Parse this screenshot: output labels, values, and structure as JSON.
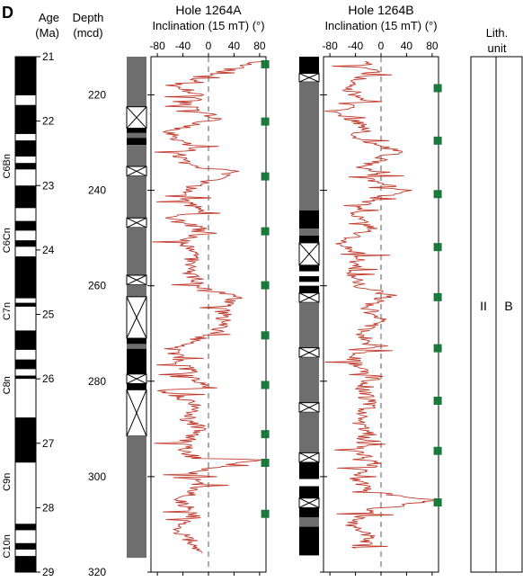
{
  "panel_label": "D",
  "age_header": [
    "Age",
    "(Ma)"
  ],
  "depth_header": [
    "Depth",
    "(mcd)"
  ],
  "hole_a_title": [
    "Hole 1264A",
    "Inclination (15 mT) (°)"
  ],
  "hole_b_title": [
    "Hole 1264B",
    "Inclination (15 mT) (°)"
  ],
  "lith_header": [
    "Lith.",
    "unit"
  ],
  "lith_units": [
    "II",
    "B"
  ],
  "colors": {
    "curve": "#c0392b",
    "marker": "#1a7a3c",
    "gray": "#6e6e6e",
    "black": "#000000",
    "white": "#ffffff"
  },
  "chart_data": [
    {
      "type": "scatter",
      "name": "age scale",
      "y_range": [
        21,
        29
      ],
      "age_ticks": [
        "21",
        "22",
        "23",
        "24",
        "25",
        "26",
        "27",
        "28",
        "29"
      ],
      "chron_labels": [
        {
          "label": "C6Bn",
          "age": 22.7
        },
        {
          "label": "C6Cn",
          "age": 23.85
        },
        {
          "label": "C7n",
          "age": 24.95
        },
        {
          "label": "C8n",
          "age": 26.1
        },
        {
          "label": "C9n",
          "age": 27.6
        },
        {
          "label": "C10n",
          "age": 28.6
        }
      ],
      "polarity_bands": [
        {
          "from": 21.0,
          "to": 21.6,
          "polarity": "normal"
        },
        {
          "from": 21.6,
          "to": 21.75,
          "polarity": "reversed"
        },
        {
          "from": 21.75,
          "to": 22.2,
          "polarity": "normal"
        },
        {
          "from": 22.2,
          "to": 22.3,
          "polarity": "reversed"
        },
        {
          "from": 22.3,
          "to": 22.55,
          "polarity": "normal"
        },
        {
          "from": 22.55,
          "to": 22.65,
          "polarity": "reversed"
        },
        {
          "from": 22.65,
          "to": 22.75,
          "polarity": "normal"
        },
        {
          "from": 22.75,
          "to": 23.0,
          "polarity": "reversed"
        },
        {
          "from": 23.0,
          "to": 23.35,
          "polarity": "normal"
        },
        {
          "from": 23.35,
          "to": 23.55,
          "polarity": "reversed"
        },
        {
          "from": 23.55,
          "to": 23.7,
          "polarity": "normal"
        },
        {
          "from": 23.7,
          "to": 23.85,
          "polarity": "reversed"
        },
        {
          "from": 23.85,
          "to": 23.95,
          "polarity": "normal"
        },
        {
          "from": 23.95,
          "to": 24.1,
          "polarity": "reversed"
        },
        {
          "from": 24.1,
          "to": 24.75,
          "polarity": "normal"
        },
        {
          "from": 24.75,
          "to": 24.82,
          "polarity": "reversed"
        },
        {
          "from": 24.82,
          "to": 24.88,
          "polarity": "normal"
        },
        {
          "from": 24.88,
          "to": 25.25,
          "polarity": "reversed"
        },
        {
          "from": 25.25,
          "to": 25.55,
          "polarity": "normal"
        },
        {
          "from": 25.55,
          "to": 25.7,
          "polarity": "reversed"
        },
        {
          "from": 25.7,
          "to": 25.85,
          "polarity": "normal"
        },
        {
          "from": 25.85,
          "to": 25.95,
          "polarity": "reversed"
        },
        {
          "from": 25.95,
          "to": 26.0,
          "polarity": "normal"
        },
        {
          "from": 26.0,
          "to": 26.6,
          "polarity": "reversed"
        },
        {
          "from": 26.6,
          "to": 27.3,
          "polarity": "normal"
        },
        {
          "from": 27.3,
          "to": 28.25,
          "polarity": "reversed"
        },
        {
          "from": 28.25,
          "to": 28.35,
          "polarity": "normal"
        },
        {
          "from": 28.35,
          "to": 28.55,
          "polarity": "reversed"
        },
        {
          "from": 28.55,
          "to": 28.65,
          "polarity": "normal"
        },
        {
          "from": 28.65,
          "to": 28.75,
          "polarity": "reversed"
        },
        {
          "from": 28.75,
          "to": 29.0,
          "polarity": "normal"
        }
      ]
    },
    {
      "type": "line",
      "name": "Hole 1264A",
      "xlim": [
        -90,
        90
      ],
      "ylim": [
        212,
        320
      ],
      "x_ticks": [
        "-80",
        "-40",
        "0",
        "40",
        "80"
      ],
      "y_ticks": [
        "220",
        "240",
        "260",
        "280",
        "300",
        "320"
      ],
      "core_breaks": [
        213.5,
        224.5,
        236.2,
        247.8,
        258.9,
        270.2,
        280.1,
        291.5,
        296.7,
        308.0
      ],
      "column": [
        {
          "from": 212,
          "to": 222.5,
          "kind": "gray"
        },
        {
          "from": 222.5,
          "to": 227.0,
          "kind": "void"
        },
        {
          "from": 227.0,
          "to": 228.0,
          "kind": "black"
        },
        {
          "from": 228.0,
          "to": 229.0,
          "kind": "gray"
        },
        {
          "from": 229.0,
          "to": 230.5,
          "kind": "black"
        },
        {
          "from": 230.5,
          "to": 235.0,
          "kind": "gray"
        },
        {
          "from": 235.0,
          "to": 237.0,
          "kind": "void"
        },
        {
          "from": 237.0,
          "to": 245.8,
          "kind": "gray"
        },
        {
          "from": 245.8,
          "to": 247.8,
          "kind": "void"
        },
        {
          "from": 247.8,
          "to": 257.8,
          "kind": "gray"
        },
        {
          "from": 257.8,
          "to": 259.8,
          "kind": "void"
        },
        {
          "from": 259.8,
          "to": 262.3,
          "kind": "gray"
        },
        {
          "from": 262.3,
          "to": 271.0,
          "kind": "void"
        },
        {
          "from": 271.0,
          "to": 272.2,
          "kind": "black"
        },
        {
          "from": 272.2,
          "to": 273.2,
          "kind": "gray"
        },
        {
          "from": 273.2,
          "to": 278.5,
          "kind": "black"
        },
        {
          "from": 278.5,
          "to": 280.5,
          "kind": "void"
        },
        {
          "from": 280.5,
          "to": 281.8,
          "kind": "black"
        },
        {
          "from": 281.8,
          "to": 291.5,
          "kind": "void"
        },
        {
          "from": 291.5,
          "to": 317.0,
          "kind": "gray"
        }
      ],
      "guide_points": [
        [
          85,
          213
        ],
        [
          -5,
          216
        ],
        [
          -55,
          218
        ],
        [
          -10,
          220
        ],
        [
          -35,
          222
        ],
        [
          10,
          225
        ],
        [
          -65,
          228
        ],
        [
          -20,
          231
        ],
        [
          -45,
          233
        ],
        [
          -30,
          235
        ],
        [
          40,
          236
        ],
        [
          -20,
          239
        ],
        [
          -40,
          242
        ],
        [
          -15,
          244
        ],
        [
          -60,
          246
        ],
        [
          -10,
          248
        ],
        [
          -40,
          251
        ],
        [
          -25,
          254
        ],
        [
          -35,
          257
        ],
        [
          -15,
          259
        ],
        [
          -5,
          261
        ],
        [
          45,
          262
        ],
        [
          20,
          265
        ],
        [
          30,
          268
        ],
        [
          10,
          270
        ],
        [
          -60,
          273
        ],
        [
          -40,
          276
        ],
        [
          -25,
          279
        ],
        [
          -5,
          281
        ],
        [
          -70,
          282
        ],
        [
          -20,
          285
        ],
        [
          -35,
          288
        ],
        [
          -10,
          290
        ],
        [
          -40,
          293
        ],
        [
          -25,
          296
        ],
        [
          80,
          296.5
        ],
        [
          -30,
          299
        ],
        [
          -15,
          302
        ],
        [
          -45,
          305
        ],
        [
          -20,
          308
        ],
        [
          -50,
          311
        ],
        [
          -30,
          313
        ],
        [
          -10,
          316
        ]
      ],
      "markers": [
        {
          "depth": 213.5,
          "incl": 88
        },
        {
          "depth": 225.5,
          "incl": 88
        },
        {
          "depth": 237.0,
          "incl": 88
        },
        {
          "depth": 248.5,
          "incl": 88
        },
        {
          "depth": 259.8,
          "incl": 88
        },
        {
          "depth": 270.3,
          "incl": 88
        },
        {
          "depth": 280.7,
          "incl": 88
        },
        {
          "depth": 291.0,
          "incl": 88
        },
        {
          "depth": 297.0,
          "incl": 88
        },
        {
          "depth": 307.7,
          "incl": 88
        }
      ]
    },
    {
      "type": "line",
      "name": "Hole 1264B",
      "xlim": [
        -90,
        90
      ],
      "ylim": [
        212,
        320
      ],
      "x_ticks": [
        "-80",
        "-40",
        "0",
        "40",
        "80"
      ],
      "y_ticks": [],
      "core_breaks": [
        218.9,
        229.8,
        240.9,
        252.2,
        262.8,
        273.4,
        284.0,
        294.9,
        305.8
      ],
      "column": [
        {
          "from": 212,
          "to": 215.5,
          "kind": "black"
        },
        {
          "from": 215.5,
          "to": 217.3,
          "kind": "void"
        },
        {
          "from": 217.3,
          "to": 244.2,
          "kind": "gray"
        },
        {
          "from": 244.2,
          "to": 248.0,
          "kind": "black"
        },
        {
          "from": 248.0,
          "to": 249.5,
          "kind": "gray"
        },
        {
          "from": 249.5,
          "to": 251.0,
          "kind": "black"
        },
        {
          "from": 251.0,
          "to": 255.7,
          "kind": "void"
        },
        {
          "from": 255.7,
          "to": 257.0,
          "kind": "black"
        },
        {
          "from": 257.0,
          "to": 258.0,
          "kind": "white"
        },
        {
          "from": 258.0,
          "to": 259.2,
          "kind": "black"
        },
        {
          "from": 259.2,
          "to": 260.0,
          "kind": "white"
        },
        {
          "from": 260.0,
          "to": 261.5,
          "kind": "black"
        },
        {
          "from": 261.5,
          "to": 263.5,
          "kind": "void"
        },
        {
          "from": 263.5,
          "to": 273.0,
          "kind": "gray"
        },
        {
          "from": 273.0,
          "to": 275.0,
          "kind": "void"
        },
        {
          "from": 275.0,
          "to": 284.5,
          "kind": "gray"
        },
        {
          "from": 284.5,
          "to": 286.5,
          "kind": "void"
        },
        {
          "from": 286.5,
          "to": 295.0,
          "kind": "gray"
        },
        {
          "from": 295.0,
          "to": 297.0,
          "kind": "void"
        },
        {
          "from": 297.0,
          "to": 300.5,
          "kind": "black"
        },
        {
          "from": 300.5,
          "to": 302.0,
          "kind": "white"
        },
        {
          "from": 302.0,
          "to": 304.5,
          "kind": "black"
        },
        {
          "from": 304.5,
          "to": 306.5,
          "kind": "void"
        },
        {
          "from": 306.5,
          "to": 308.5,
          "kind": "black"
        },
        {
          "from": 308.5,
          "to": 310.5,
          "kind": "gray"
        },
        {
          "from": 310.5,
          "to": 316.5,
          "kind": "black"
        }
      ],
      "guide_points": [
        [
          -35,
          213
        ],
        [
          -10,
          215
        ],
        [
          -55,
          218
        ],
        [
          -30,
          221
        ],
        [
          -65,
          224
        ],
        [
          -20,
          227
        ],
        [
          -45,
          229
        ],
        [
          10,
          231
        ],
        [
          25,
          232
        ],
        [
          -30,
          235
        ],
        [
          -10,
          238
        ],
        [
          40,
          240
        ],
        [
          -20,
          242
        ],
        [
          -40,
          245
        ],
        [
          -15,
          248
        ],
        [
          -60,
          251
        ],
        [
          -30,
          254
        ],
        [
          -50,
          257
        ],
        [
          -35,
          260
        ],
        [
          15,
          262
        ],
        [
          -25,
          264
        ],
        [
          -5,
          267
        ],
        [
          -30,
          270
        ],
        [
          -20,
          273
        ],
        [
          -45,
          276
        ],
        [
          -10,
          279
        ],
        [
          -30,
          282
        ],
        [
          -15,
          285
        ],
        [
          -40,
          288
        ],
        [
          -20,
          291
        ],
        [
          -35,
          294
        ],
        [
          -10,
          297
        ],
        [
          -40,
          300
        ],
        [
          -25,
          303
        ],
        [
          85,
          305
        ],
        [
          -20,
          307
        ],
        [
          -45,
          310
        ],
        [
          -15,
          313
        ],
        [
          -40,
          315
        ]
      ],
      "markers": [
        {
          "depth": 218.5,
          "incl": 88
        },
        {
          "depth": 229.5,
          "incl": 88
        },
        {
          "depth": 240.7,
          "incl": 88
        },
        {
          "depth": 251.8,
          "incl": 88
        },
        {
          "depth": 262.3,
          "incl": 88
        },
        {
          "depth": 273.0,
          "incl": 88
        },
        {
          "depth": 284.0,
          "incl": 88
        },
        {
          "depth": 294.5,
          "incl": 88
        },
        {
          "depth": 305.3,
          "incl": 88
        }
      ]
    }
  ]
}
